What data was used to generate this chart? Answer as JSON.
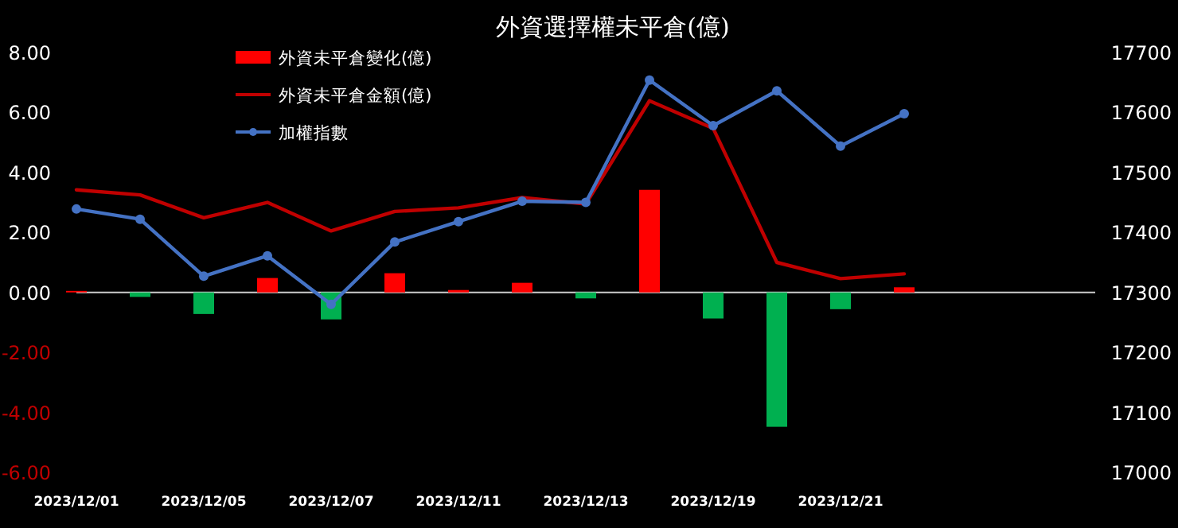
{
  "chart_data": {
    "type": "bar",
    "title": "外資選擇權未平倉(億)",
    "categories": [
      "2023/12/01",
      null,
      "2023/12/05",
      null,
      "2023/12/07",
      null,
      "2023/12/11",
      null,
      "2023/12/13",
      null,
      "2023/12/19",
      null,
      "2023/12/21",
      null,
      null,
      null,
      null
    ],
    "series": [
      {
        "name": "外資未平倉變化(億)",
        "color": "#ff0000",
        "colors": [
          "#ff0000",
          "#00b050",
          "#00b050",
          "#ff0000",
          "#00b050",
          "#ff0000",
          "#ff0000",
          "#ff0000",
          "#00b050",
          "#ff0000",
          "#00b050",
          "#00b050",
          "#00b050",
          "#ff0000",
          null,
          null,
          null
        ],
        "values": [
          0.05,
          -0.15,
          -0.72,
          0.48,
          -0.9,
          0.64,
          0.08,
          0.32,
          -0.2,
          3.42,
          -0.87,
          -4.48,
          -0.56,
          0.17,
          null,
          null,
          null
        ]
      },
      {
        "name": "外資未平倉金額(億)",
        "type": "line",
        "color": "#c00000",
        "marker": "none",
        "values": [
          3.42,
          3.25,
          2.49,
          3.0,
          2.05,
          2.7,
          2.82,
          3.16,
          2.95,
          6.39,
          5.47,
          1.0,
          0.46,
          0.62,
          null,
          null,
          null
        ]
      },
      {
        "name": "加權指數",
        "type": "line",
        "axis": "y2",
        "color": "#4472c4",
        "marker": "circle",
        "values": [
          17439,
          17422,
          17327,
          17361,
          17280,
          17384,
          17418,
          17452,
          17450,
          17654,
          17578,
          17636,
          17544,
          17598,
          null,
          null,
          null
        ]
      }
    ],
    "ylim": [
      -6,
      8
    ],
    "yticks": [
      {
        "value": -6,
        "label": "-6.00"
      },
      {
        "value": -4,
        "label": "-4.00"
      },
      {
        "value": -2,
        "label": "-2.00"
      },
      {
        "value": 0,
        "label": "0.00"
      },
      {
        "value": 2,
        "label": "2.00"
      },
      {
        "value": 4,
        "label": "4.00"
      },
      {
        "value": 6,
        "label": "6.00"
      },
      {
        "value": 8,
        "label": "8.00"
      }
    ],
    "y2lim": [
      17000,
      17700
    ],
    "y2ticks": [
      17000,
      17100,
      17200,
      17300,
      17400,
      17500,
      17600,
      17700
    ],
    "legend": "top left"
  }
}
